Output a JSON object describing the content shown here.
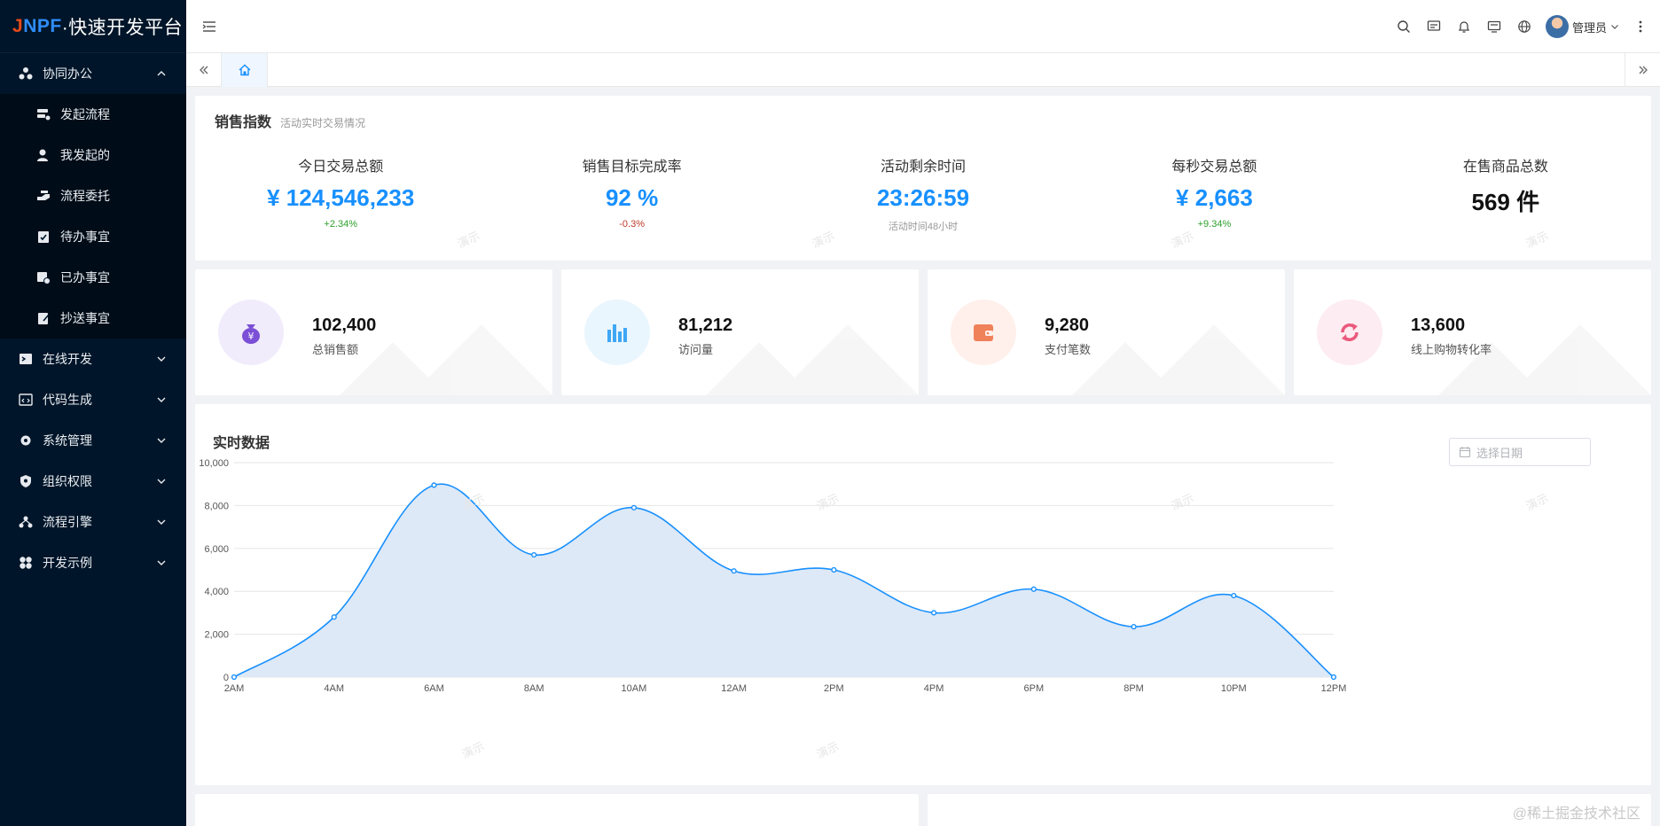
{
  "app": {
    "logo_prefix_j": "J",
    "logo_prefix_npf": "NPF",
    "logo_text": "·快速开发平台"
  },
  "sidebar": {
    "groups": [
      {
        "label": "协同办公",
        "icon": "collab-icon",
        "expanded": true,
        "children": [
          {
            "label": "发起流程",
            "icon": "launch-flow-icon"
          },
          {
            "label": "我发起的",
            "icon": "my-launched-icon"
          },
          {
            "label": "流程委托",
            "icon": "delegate-icon"
          },
          {
            "label": "待办事宜",
            "icon": "todo-icon"
          },
          {
            "label": "已办事宜",
            "icon": "done-icon"
          },
          {
            "label": "抄送事宜",
            "icon": "cc-icon"
          }
        ]
      },
      {
        "label": "在线开发",
        "icon": "terminal-icon",
        "expanded": false
      },
      {
        "label": "代码生成",
        "icon": "code-icon",
        "expanded": false
      },
      {
        "label": "系统管理",
        "icon": "gear-icon",
        "expanded": false
      },
      {
        "label": "组织权限",
        "icon": "shield-icon",
        "expanded": false
      },
      {
        "label": "流程引擎",
        "icon": "workflow-icon",
        "expanded": false
      },
      {
        "label": "开发示例",
        "icon": "examples-icon",
        "expanded": false
      }
    ]
  },
  "header": {
    "user_name": "管理员",
    "icons": [
      "search-icon",
      "message-icon",
      "bell-icon",
      "screen-icon",
      "globe-icon",
      "more-icon"
    ]
  },
  "tabs": {
    "home_icon": "home-icon"
  },
  "sales": {
    "title": "销售指数",
    "subtitle": "活动实时交易情况",
    "kpis": [
      {
        "label": "今日交易总额",
        "value": "¥ 124,546,233",
        "note": "+2.34%",
        "note_type": "up"
      },
      {
        "label": "销售目标完成率",
        "value": "92 %",
        "note": "-0.3%",
        "note_type": "down"
      },
      {
        "label": "活动剩余时间",
        "value": "23:26:59",
        "note": "活动时间48小时",
        "note_type": "gray"
      },
      {
        "label": "每秒交易总额",
        "value": "¥ 2,663",
        "note": "+9.34%",
        "note_type": "up"
      },
      {
        "label": "在售商品总数",
        "value": "569 件",
        "note": "",
        "note_type": "dark"
      }
    ]
  },
  "stats": [
    {
      "value": "102,400",
      "label": "总销售额",
      "icon": "money-bag-icon",
      "color": "#7b4fd6",
      "bg": "#f1ecfc"
    },
    {
      "value": "81,212",
      "label": "访问量",
      "icon": "bar-chart-icon",
      "color": "#3fa7f5",
      "bg": "#eaf6fe"
    },
    {
      "value": "9,280",
      "label": "支付笔数",
      "icon": "wallet-icon",
      "color": "#f0825a",
      "bg": "#fff0eb"
    },
    {
      "value": "13,600",
      "label": "线上购物转化率",
      "icon": "refresh-icon",
      "color": "#ea5a7e",
      "bg": "#fdecf1"
    }
  ],
  "realtime": {
    "title": "实时数据",
    "date_placeholder": "选择日期"
  },
  "watermark": "演示",
  "footer_mark": "@稀土掘金技术社区",
  "chart_data": {
    "type": "area",
    "title": "",
    "xlabel": "",
    "ylabel": "",
    "categories": [
      "2AM",
      "4AM",
      "6AM",
      "8AM",
      "10AM",
      "12AM",
      "2PM",
      "4PM",
      "6PM",
      "8PM",
      "10PM",
      "12PM"
    ],
    "series": [
      {
        "values": [
          0,
          2800,
          8950,
          5700,
          7900,
          4950,
          5000,
          3000,
          4100,
          2350,
          3800,
          0
        ]
      }
    ],
    "ylim": [
      0,
      10000
    ],
    "yticks": [
      "0",
      "2,000",
      "4,000",
      "6,000",
      "8,000",
      "10,000"
    ],
    "grid": true,
    "color": "#1890ff",
    "fill": "#dde9f7"
  }
}
